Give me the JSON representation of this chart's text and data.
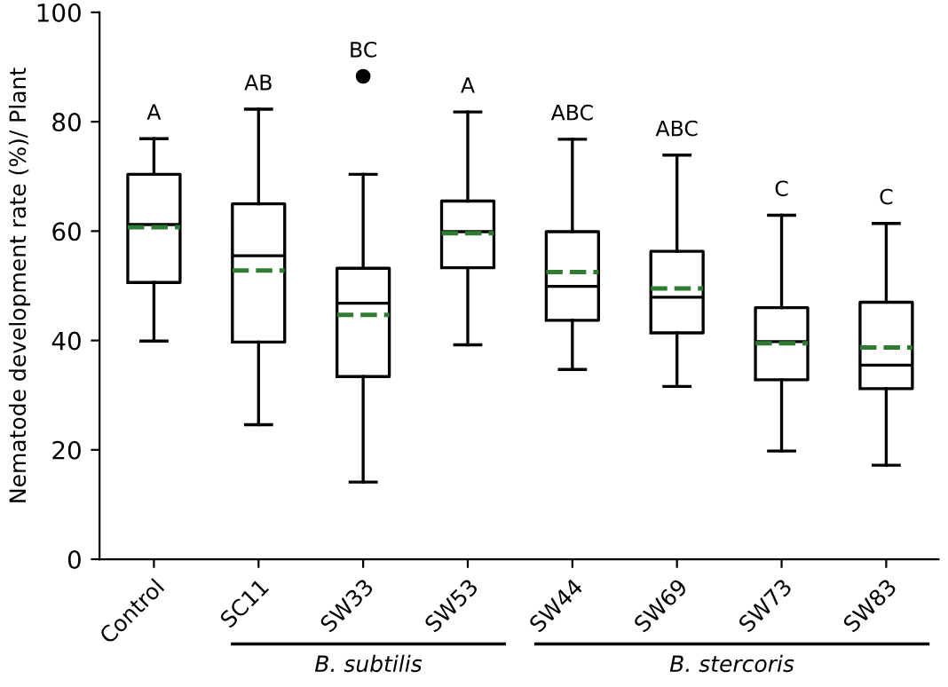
{
  "chart_data": {
    "type": "box",
    "ylabel": "Nematode development rate (%)/ Plant",
    "categories": [
      "Control",
      "SC11",
      "SW33",
      "SW53",
      "SW44",
      "SW69",
      "SW73",
      "SW83"
    ],
    "boxes": [
      {
        "low": 39.9,
        "q1": 50.6,
        "median": 61.2,
        "q3": 70.4,
        "high": 76.9,
        "mean": 60.7
      },
      {
        "low": 24.6,
        "q1": 39.7,
        "median": 55.5,
        "q3": 65.0,
        "high": 82.3,
        "mean": 52.8
      },
      {
        "low": 14.1,
        "q1": 33.4,
        "median": 46.8,
        "q3": 53.2,
        "high": 70.4,
        "mean": 44.7,
        "outliers": [
          88.3
        ]
      },
      {
        "low": 39.2,
        "q1": 53.3,
        "median": 59.9,
        "q3": 65.5,
        "high": 81.8,
        "mean": 59.6
      },
      {
        "low": 34.7,
        "q1": 43.7,
        "median": 49.9,
        "q3": 59.9,
        "high": 76.8,
        "mean": 52.5
      },
      {
        "low": 31.6,
        "q1": 41.4,
        "median": 47.9,
        "q3": 56.3,
        "high": 73.9,
        "mean": 49.5
      },
      {
        "low": 19.8,
        "q1": 32.8,
        "median": 39.8,
        "q3": 46.0,
        "high": 62.9,
        "mean": 39.5
      },
      {
        "low": 17.2,
        "q1": 31.2,
        "median": 35.5,
        "q3": 47.0,
        "high": 61.4,
        "mean": 38.7
      }
    ],
    "ylim": [
      0,
      100
    ],
    "yticks": [
      0,
      20,
      40,
      60,
      80,
      100
    ],
    "grid": false,
    "annotations": [
      "A",
      "AB",
      "BC",
      "A",
      "ABC",
      "ABC",
      "C",
      "C",
      "B. subtilis",
      "B. stercoris"
    ]
  }
}
